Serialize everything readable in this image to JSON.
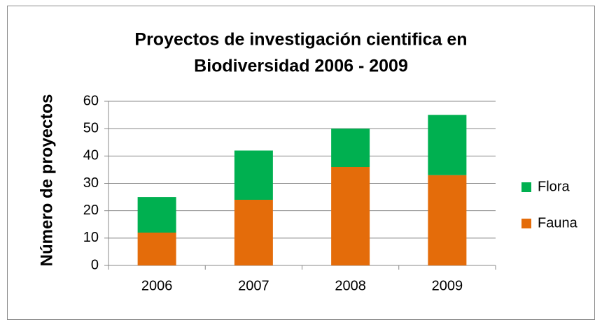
{
  "chart_data": {
    "type": "stacked_bar",
    "title": [
      "Proyectos de investigación cientifica en",
      "Biodiversidad 2006 - 2009"
    ],
    "y_label": "Número de proyectos",
    "categories": [
      "2006",
      "2007",
      "2008",
      "2009"
    ],
    "series": [
      {
        "name": "Fauna",
        "color": "#e46c0a",
        "values": [
          12,
          24,
          36,
          33
        ]
      },
      {
        "name": "Flora",
        "color": "#00b050",
        "values": [
          13,
          18,
          14,
          22
        ]
      }
    ],
    "ylim": [
      0,
      60
    ],
    "yticks": [
      0,
      10,
      20,
      30,
      40,
      50,
      60
    ],
    "grid": true,
    "legend": "right"
  }
}
